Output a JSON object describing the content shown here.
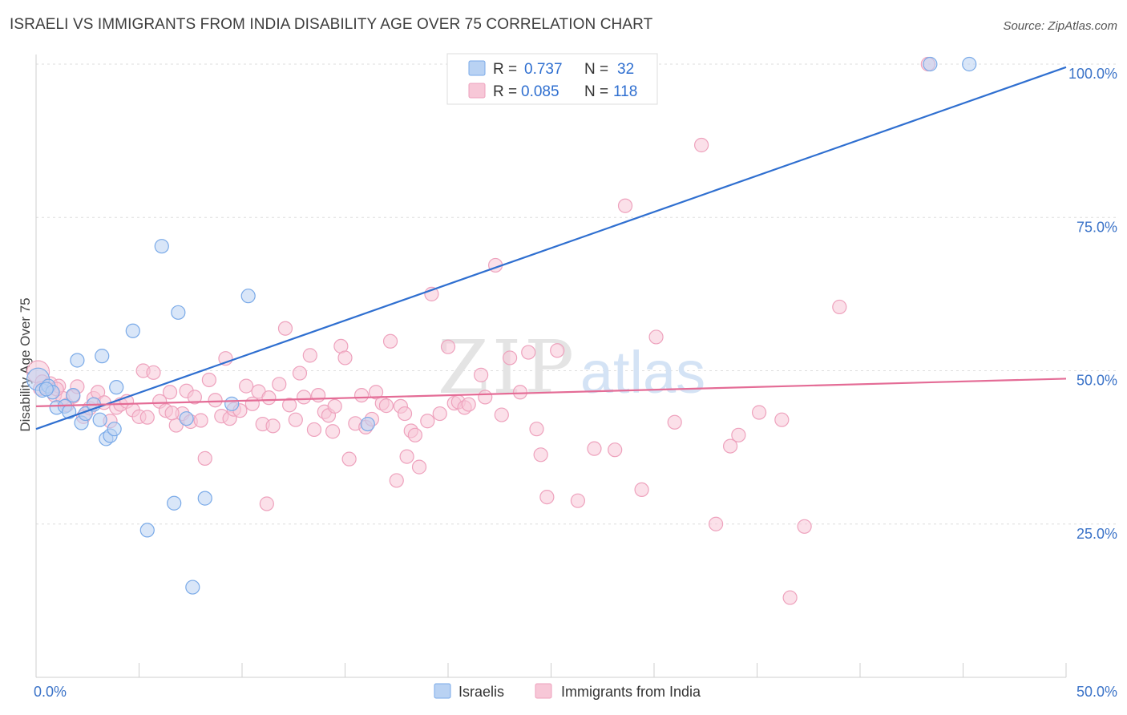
{
  "header": {
    "title": "ISRAELI VS IMMIGRANTS FROM INDIA DISABILITY AGE OVER 75 CORRELATION CHART",
    "source": "Source: ZipAtlas.com"
  },
  "watermark": {
    "zip": "ZIP",
    "atlas": "atlas"
  },
  "chart_data": {
    "type": "scatter",
    "title": "ISRAELI VS IMMIGRANTS FROM INDIA DISABILITY AGE OVER 75 CORRELATION CHART",
    "xlabel": "",
    "ylabel": "Disability Age Over 75",
    "xlim": [
      0,
      50
    ],
    "ylim": [
      0,
      100
    ],
    "x_tick_labels": {
      "min": "0.0%",
      "max": "50.0%"
    },
    "y_ticks": [
      {
        "value": 25,
        "label": "25.0%"
      },
      {
        "value": 50,
        "label": "50.0%"
      },
      {
        "value": 75,
        "label": "75.0%"
      },
      {
        "value": 100,
        "label": "100.0%"
      }
    ],
    "grid": "horizontal dashed",
    "legend_position": "top-center",
    "series": [
      {
        "name": "Israelis",
        "color": "#7aaae8",
        "fill": "#b9d2f3",
        "trend_color": "#2f6fd0",
        "stats": {
          "r_label": "R =",
          "r": "0.737",
          "n_label": "N =",
          "n": "32"
        },
        "trend": {
          "x": [
            0,
            50
          ],
          "y": [
            40.5,
            99.5
          ]
        },
        "points": [
          [
            0.1,
            48.6
          ],
          [
            0.3,
            46.8
          ],
          [
            0.6,
            47.5
          ],
          [
            0.8,
            46.5
          ],
          [
            1.0,
            44.0
          ],
          [
            1.4,
            44.2
          ],
          [
            1.6,
            43.3
          ],
          [
            1.8,
            46.0
          ],
          [
            2.0,
            51.7
          ],
          [
            2.2,
            41.5
          ],
          [
            2.4,
            43.0
          ],
          [
            2.8,
            44.5
          ],
          [
            3.1,
            42.0
          ],
          [
            3.2,
            52.4
          ],
          [
            3.4,
            38.9
          ],
          [
            3.6,
            39.4
          ],
          [
            3.8,
            40.5
          ],
          [
            3.9,
            47.3
          ],
          [
            4.7,
            56.5
          ],
          [
            5.4,
            24.0
          ],
          [
            6.1,
            70.3
          ],
          [
            6.7,
            28.4
          ],
          [
            6.9,
            59.5
          ],
          [
            7.3,
            42.2
          ],
          [
            7.6,
            14.7
          ],
          [
            8.2,
            29.2
          ],
          [
            9.5,
            44.6
          ],
          [
            10.3,
            62.2
          ],
          [
            16.1,
            41.3
          ],
          [
            43.4,
            100.0
          ],
          [
            45.3,
            100.0
          ],
          [
            0.5,
            47.0
          ]
        ]
      },
      {
        "name": "Immigrants from India",
        "color": "#eea2bd",
        "fill": "#f7c7d7",
        "trend_color": "#e46c96",
        "stats": {
          "r_label": "R =",
          "r": "0.085",
          "n_label": "N =",
          "n": "118"
        },
        "trend": {
          "x": [
            0,
            50
          ],
          "y": [
            44.2,
            48.7
          ]
        },
        "points": [
          [
            0.1,
            49.8
          ],
          [
            0.3,
            48.2
          ],
          [
            0.5,
            47.3
          ],
          [
            0.7,
            47.9
          ],
          [
            0.9,
            46.0
          ],
          [
            1.1,
            47.5
          ],
          [
            1.3,
            45.5
          ],
          [
            1.5,
            44.4
          ],
          [
            1.8,
            45.8
          ],
          [
            2.0,
            47.4
          ],
          [
            2.3,
            42.5
          ],
          [
            2.6,
            43.9
          ],
          [
            2.8,
            45.5
          ],
          [
            3.0,
            46.5
          ],
          [
            3.3,
            44.8
          ],
          [
            3.6,
            41.8
          ],
          [
            3.9,
            44.0
          ],
          [
            4.1,
            44.5
          ],
          [
            4.4,
            45.0
          ],
          [
            4.7,
            43.6
          ],
          [
            5.0,
            42.5
          ],
          [
            5.2,
            50.0
          ],
          [
            5.4,
            42.4
          ],
          [
            5.7,
            49.7
          ],
          [
            6.0,
            45.0
          ],
          [
            6.3,
            43.5
          ],
          [
            6.5,
            46.5
          ],
          [
            6.8,
            41.1
          ],
          [
            7.1,
            43.0
          ],
          [
            7.3,
            46.7
          ],
          [
            7.5,
            41.7
          ],
          [
            7.7,
            45.7
          ],
          [
            8.0,
            41.9
          ],
          [
            8.2,
            35.7
          ],
          [
            8.4,
            48.5
          ],
          [
            8.7,
            45.2
          ],
          [
            9.0,
            42.6
          ],
          [
            9.2,
            52.0
          ],
          [
            9.4,
            42.2
          ],
          [
            9.6,
            43.7
          ],
          [
            9.9,
            43.5
          ],
          [
            10.2,
            47.5
          ],
          [
            10.5,
            44.6
          ],
          [
            10.8,
            46.6
          ],
          [
            11.0,
            41.3
          ],
          [
            11.3,
            45.6
          ],
          [
            11.5,
            41.0
          ],
          [
            11.8,
            47.8
          ],
          [
            12.1,
            56.9
          ],
          [
            12.3,
            44.4
          ],
          [
            12.6,
            42.0
          ],
          [
            12.8,
            49.6
          ],
          [
            13.0,
            45.7
          ],
          [
            13.3,
            52.5
          ],
          [
            13.5,
            40.4
          ],
          [
            13.7,
            46.0
          ],
          [
            14.0,
            43.3
          ],
          [
            14.2,
            42.7
          ],
          [
            14.5,
            44.2
          ],
          [
            14.8,
            54.0
          ],
          [
            15.0,
            52.1
          ],
          [
            15.2,
            35.6
          ],
          [
            15.5,
            41.4
          ],
          [
            15.8,
            46.0
          ],
          [
            16.0,
            40.8
          ],
          [
            16.3,
            42.1
          ],
          [
            16.5,
            46.5
          ],
          [
            16.8,
            44.7
          ],
          [
            17.0,
            44.3
          ],
          [
            17.2,
            54.8
          ],
          [
            17.5,
            32.1
          ],
          [
            17.7,
            44.2
          ],
          [
            18.0,
            36.0
          ],
          [
            18.2,
            40.2
          ],
          [
            18.4,
            39.5
          ],
          [
            18.6,
            34.3
          ],
          [
            19.0,
            41.8
          ],
          [
            19.2,
            62.5
          ],
          [
            19.6,
            43.0
          ],
          [
            20.0,
            53.9
          ],
          [
            20.3,
            44.7
          ],
          [
            20.5,
            44.9
          ],
          [
            20.8,
            44.0
          ],
          [
            21.6,
            49.3
          ],
          [
            21.8,
            45.7
          ],
          [
            22.3,
            67.2
          ],
          [
            22.6,
            42.8
          ],
          [
            23.0,
            52.1
          ],
          [
            23.5,
            46.5
          ],
          [
            23.9,
            53.0
          ],
          [
            24.3,
            40.5
          ],
          [
            24.5,
            36.3
          ],
          [
            24.8,
            29.4
          ],
          [
            25.3,
            53.3
          ],
          [
            26.3,
            28.8
          ],
          [
            27.1,
            37.3
          ],
          [
            28.1,
            37.1
          ],
          [
            28.6,
            76.9
          ],
          [
            29.4,
            30.6
          ],
          [
            30.1,
            55.5
          ],
          [
            31.0,
            41.6
          ],
          [
            32.3,
            86.8
          ],
          [
            33.0,
            25.0
          ],
          [
            33.7,
            37.7
          ],
          [
            34.1,
            39.5
          ],
          [
            35.1,
            43.2
          ],
          [
            36.2,
            42.0
          ],
          [
            36.6,
            13.0
          ],
          [
            37.3,
            24.6
          ],
          [
            39.0,
            60.4
          ],
          [
            43.3,
            100.0
          ],
          [
            0.2,
            47.1
          ],
          [
            1.0,
            47.0
          ],
          [
            6.6,
            43.1
          ],
          [
            11.2,
            28.3
          ],
          [
            14.4,
            40.1
          ],
          [
            17.9,
            43.0
          ],
          [
            21.0,
            44.5
          ]
        ]
      }
    ]
  }
}
